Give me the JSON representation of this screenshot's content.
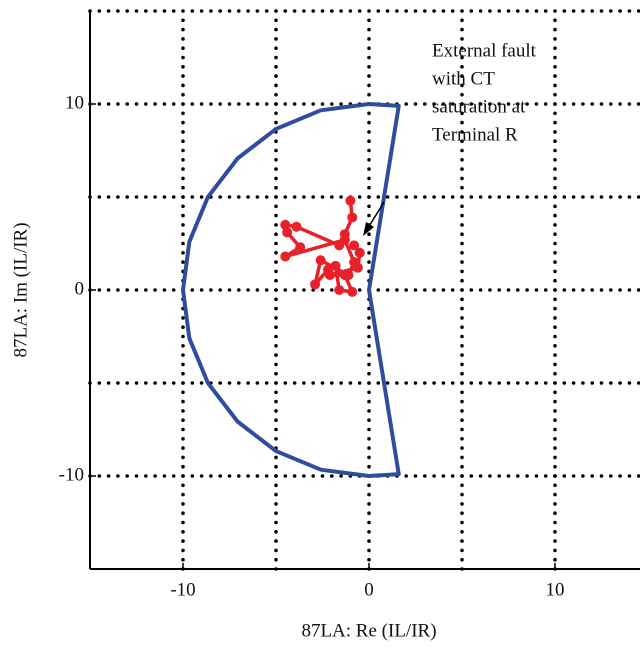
{
  "chart_data": {
    "type": "line",
    "xlabel": "87LA: Re (IL/IR)",
    "ylabel": "87LA: Im (IL/IR)",
    "annotation": [
      "External fault",
      "with CT",
      "saturation at",
      "Terminal R"
    ],
    "xlim": [
      -15,
      14.5
    ],
    "ylim": [
      -15,
      15
    ],
    "xticks": [
      -10,
      0,
      10
    ],
    "yticks": [
      -10,
      0,
      10
    ],
    "x_grid": [
      -10,
      -5,
      0,
      5,
      10
    ],
    "y_grid": [
      -10,
      -5,
      0,
      5,
      10,
      15
    ],
    "grid": true,
    "series": [
      {
        "name": "boundary",
        "color": "#2f4d9e",
        "marker": false,
        "x": [
          0,
          -2.59,
          -5,
          -7.07,
          -8.66,
          -9.66,
          -10,
          -9.66,
          -8.66,
          -7.07,
          -5,
          -2.59,
          0,
          1.6,
          0,
          1.6,
          0
        ],
        "values": [
          10,
          9.66,
          8.66,
          7.07,
          5,
          2.59,
          0,
          -2.59,
          -5,
          -7.07,
          -8.66,
          -9.66,
          -10,
          -9.9,
          0,
          9.9,
          10
        ]
      },
      {
        "name": "trajectory",
        "color": "#e8202a",
        "marker": true,
        "x": [
          -1.0,
          -0.9,
          -1.3,
          -1.6,
          -3.9,
          -4.5,
          -4.4,
          -3.7,
          -4.5,
          -1.3,
          -0.8,
          -1.1,
          -2.6,
          -2.9,
          -2.2,
          -1.8,
          -1.6,
          -0.9,
          -1.3,
          -2.1,
          -0.6,
          -0.5,
          -0.8
        ],
        "values": [
          4.8,
          3.9,
          3.0,
          2.4,
          3.4,
          3.5,
          3.1,
          2.3,
          1.8,
          2.7,
          1.5,
          0.8,
          1.6,
          0.3,
          1.1,
          1.3,
          0.0,
          -0.1,
          0.8,
          0.8,
          1.2,
          2.0,
          2.4
        ]
      }
    ]
  }
}
